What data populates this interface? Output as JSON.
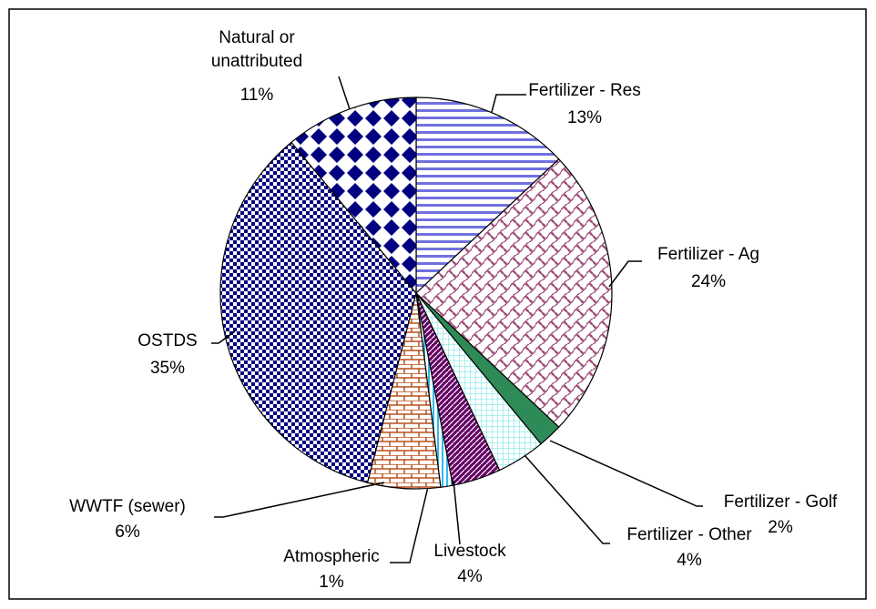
{
  "chart_data": {
    "type": "pie",
    "categories": [
      "Fertilizer - Res",
      "Fertilizer - Ag",
      "Fertilizer - Golf",
      "Fertilizer - Other",
      "Livestock",
      "Atmospheric",
      "WWTF (sewer)",
      "OSTDS",
      "Natural or unattributed"
    ],
    "values": [
      13,
      24,
      2,
      4,
      4,
      1,
      6,
      35,
      11
    ],
    "value_labels": [
      "13%",
      "24%",
      "2%",
      "4%",
      "4%",
      "1%",
      "6%",
      "35%",
      "11%"
    ],
    "colors": [
      "#7070e0",
      "#a0507a",
      "#2e8b57",
      "#7fe8e8",
      "#660066",
      "#33b8ee",
      "#b8501e",
      "#000080",
      "#000080"
    ]
  }
}
